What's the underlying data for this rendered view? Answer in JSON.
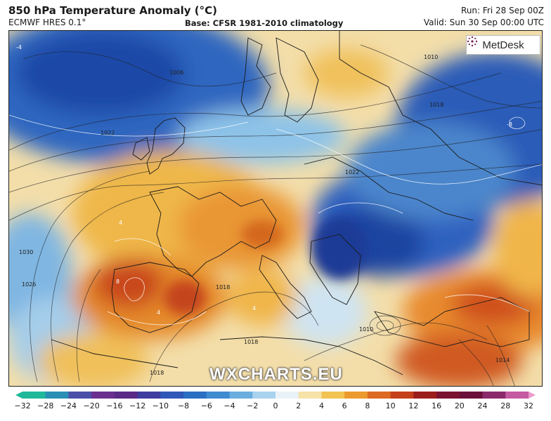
{
  "header": {
    "title": "850 hPa Temperature Anomaly (°C)",
    "model": "ECMWF HRES 0.1°",
    "base": "Base: CFSR 1981-2010 climatology",
    "run": "Run: Fri 28 Sep 00Z",
    "valid": "Valid: Sun 30 Sep 00:00 UTC"
  },
  "logo": {
    "text": "MetDesk",
    "icon": "metdesk-star-icon"
  },
  "watermark": "WXCHARTS.EU",
  "map": {
    "region": "Europe",
    "isobar_labels": [
      "1006",
      "1010",
      "1018",
      "1022",
      "1030",
      "1026",
      "1018",
      "1010",
      "1014",
      "1018",
      "1018",
      "1022"
    ],
    "anomaly_labels": [
      "-4",
      "-8",
      "4",
      "8",
      "4",
      "4"
    ]
  },
  "colorbar": {
    "ticks": [
      "−32",
      "−28",
      "−24",
      "−20",
      "−16",
      "−12",
      "−10",
      "−8",
      "−6",
      "−4",
      "−2",
      "0",
      "2",
      "4",
      "6",
      "8",
      "10",
      "12",
      "16",
      "20",
      "24",
      "28",
      "32"
    ],
    "colors": [
      "#1fb89a",
      "#2a8fb5",
      "#4a4fa8",
      "#6b2f8f",
      "#5a2a86",
      "#3d3da0",
      "#2f57b8",
      "#2a6ec4",
      "#3e8bd0",
      "#6aaee0",
      "#a8d2ee",
      "#e9f2f7",
      "#f6e2a6",
      "#f2c252",
      "#eb9a2f",
      "#dc6a22",
      "#c4401c",
      "#9a1e1c",
      "#7a1230",
      "#6a0f3a",
      "#8a2a6a",
      "#c45aa2",
      "#ec98cc"
    ]
  }
}
